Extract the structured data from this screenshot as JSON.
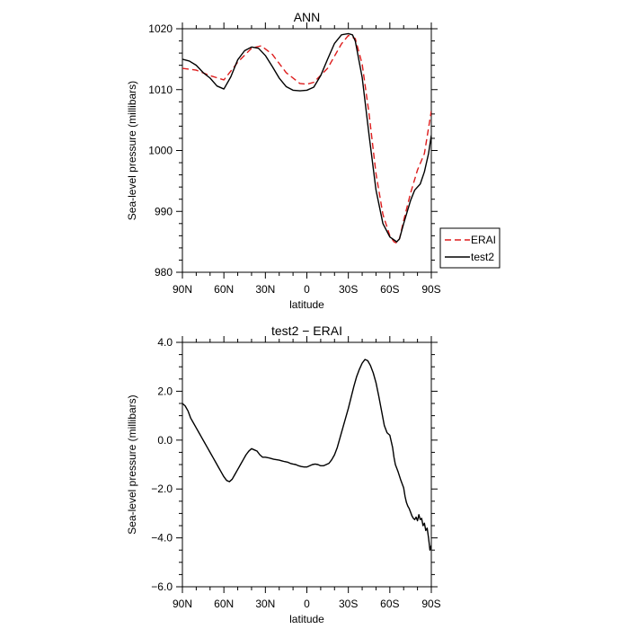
{
  "chart_data": [
    {
      "type": "line",
      "title": "ANN",
      "xlabel": "latitude",
      "ylabel": "Sea-level pressure (millibars)",
      "xlim": [
        90,
        -90
      ],
      "ylim": [
        980,
        1020
      ],
      "x_ticks": [
        90,
        60,
        30,
        0,
        -30,
        -60,
        -90
      ],
      "x_tick_labels": [
        "90N",
        "60N",
        "30N",
        "0",
        "30S",
        "60S",
        "90S"
      ],
      "y_ticks": [
        980,
        990,
        1000,
        1010,
        1020
      ],
      "y_tick_labels": [
        "980",
        "990",
        "1000",
        "1010",
        "1020"
      ],
      "legend_position": "outside-right",
      "series": [
        {
          "name": "ERAI",
          "color": "#dd1c1c",
          "dash": "dashed",
          "x": [
            90,
            80,
            70,
            60,
            50,
            40,
            33,
            25,
            15,
            5,
            0,
            -5,
            -15,
            -25,
            -30,
            -35,
            -40,
            -45,
            -50,
            -55,
            -60,
            -63,
            -65,
            -67,
            -70,
            -75,
            -80,
            -85,
            -90
          ],
          "y": [
            1013.5,
            1013.2,
            1012.3,
            1011.6,
            1014.5,
            1016.8,
            1017.2,
            1015.8,
            1012.8,
            1011.0,
            1010.9,
            1011.2,
            1013.5,
            1017.5,
            1018.9,
            1018.4,
            1014.2,
            1006.0,
            996.2,
            989.5,
            986.0,
            985.0,
            984.8,
            985.5,
            988.5,
            993.0,
            996.8,
            999.5,
            1006.5
          ]
        },
        {
          "name": "test2",
          "color": "#000000",
          "dash": "solid",
          "x": [
            90,
            85,
            80,
            75,
            70,
            65,
            60,
            55,
            50,
            45,
            40,
            35,
            30,
            25,
            20,
            15,
            10,
            5,
            0,
            -5,
            -10,
            -15,
            -20,
            -25,
            -30,
            -33,
            -35,
            -40,
            -45,
            -50,
            -55,
            -60,
            -65,
            -67,
            -70,
            -75,
            -78,
            -82,
            -85,
            -88,
            -90
          ],
          "y": [
            1015.0,
            1014.7,
            1014.0,
            1012.8,
            1011.9,
            1010.6,
            1010.1,
            1012.1,
            1014.9,
            1016.4,
            1017.0,
            1016.8,
            1015.6,
            1013.8,
            1011.9,
            1010.5,
            1009.9,
            1009.8,
            1009.9,
            1010.4,
            1012.3,
            1015.0,
            1017.6,
            1019.0,
            1019.2,
            1019.0,
            1018.0,
            1012.0,
            1002.5,
            993.5,
            988.0,
            985.8,
            985.0,
            985.5,
            988.0,
            991.8,
            993.5,
            994.5,
            996.5,
            999.5,
            1002.5
          ]
        }
      ]
    },
    {
      "type": "line",
      "title": "test2 − ERAI",
      "xlabel": "latitude",
      "ylabel": "Sea-level pressure (millibars)",
      "xlim": [
        90,
        -90
      ],
      "ylim": [
        -6,
        4
      ],
      "x_ticks": [
        90,
        60,
        30,
        0,
        -30,
        -60,
        -90
      ],
      "x_tick_labels": [
        "90N",
        "60N",
        "30N",
        "0",
        "30S",
        "60S",
        "90S"
      ],
      "y_ticks": [
        -6,
        -4,
        -2,
        0,
        2,
        4
      ],
      "y_tick_labels": [
        "−6.0",
        "−4.0",
        "−2.0",
        "0.0",
        "2.0",
        "4.0"
      ],
      "series": [
        {
          "color": "#000000",
          "dash": "solid",
          "x": [
            90,
            88,
            86,
            84,
            82,
            80,
            78,
            76,
            74,
            72,
            70,
            68,
            66,
            64,
            62,
            60,
            58,
            56,
            54,
            52,
            50,
            48,
            46,
            44,
            42,
            40,
            38,
            36,
            34,
            32,
            30,
            28,
            26,
            24,
            22,
            20,
            18,
            16,
            14,
            12,
            10,
            8,
            6,
            4,
            2,
            0,
            -2,
            -4,
            -6,
            -8,
            -10,
            -12,
            -14,
            -16,
            -18,
            -20,
            -22,
            -24,
            -26,
            -28,
            -30,
            -32,
            -34,
            -36,
            -38,
            -40,
            -42,
            -44,
            -46,
            -48,
            -50,
            -52,
            -54,
            -56,
            -58,
            -60,
            -62,
            -63,
            -64,
            -66,
            -68,
            -70,
            -71,
            -72,
            -73,
            -74,
            -75,
            -76,
            -77,
            -78,
            -79,
            -80,
            -81,
            -82,
            -83,
            -84,
            -85,
            -86,
            -87,
            -88,
            -89,
            -90
          ],
          "y": [
            1.5,
            1.4,
            1.2,
            0.9,
            0.7,
            0.5,
            0.3,
            0.1,
            -0.1,
            -0.3,
            -0.5,
            -0.7,
            -0.9,
            -1.1,
            -1.3,
            -1.5,
            -1.65,
            -1.7,
            -1.6,
            -1.4,
            -1.2,
            -1.0,
            -0.8,
            -0.6,
            -0.45,
            -0.35,
            -0.4,
            -0.45,
            -0.6,
            -0.7,
            -0.7,
            -0.72,
            -0.75,
            -0.78,
            -0.8,
            -0.82,
            -0.85,
            -0.88,
            -0.9,
            -0.95,
            -0.98,
            -1.0,
            -1.05,
            -1.08,
            -1.1,
            -1.1,
            -1.05,
            -1.0,
            -0.98,
            -1.0,
            -1.05,
            -1.05,
            -1.0,
            -0.95,
            -0.8,
            -0.6,
            -0.3,
            0.1,
            0.5,
            0.9,
            1.3,
            1.75,
            2.2,
            2.6,
            2.9,
            3.15,
            3.3,
            3.25,
            3.05,
            2.75,
            2.35,
            1.8,
            1.2,
            0.6,
            0.3,
            0.2,
            -0.3,
            -0.7,
            -1.0,
            -1.3,
            -1.65,
            -1.95,
            -2.3,
            -2.55,
            -2.7,
            -2.8,
            -2.95,
            -3.1,
            -3.2,
            -3.25,
            -3.15,
            -3.3,
            -3.05,
            -3.25,
            -3.2,
            -3.5,
            -3.4,
            -3.7,
            -3.6,
            -4.0,
            -4.5,
            -4.3
          ]
        }
      ]
    }
  ]
}
